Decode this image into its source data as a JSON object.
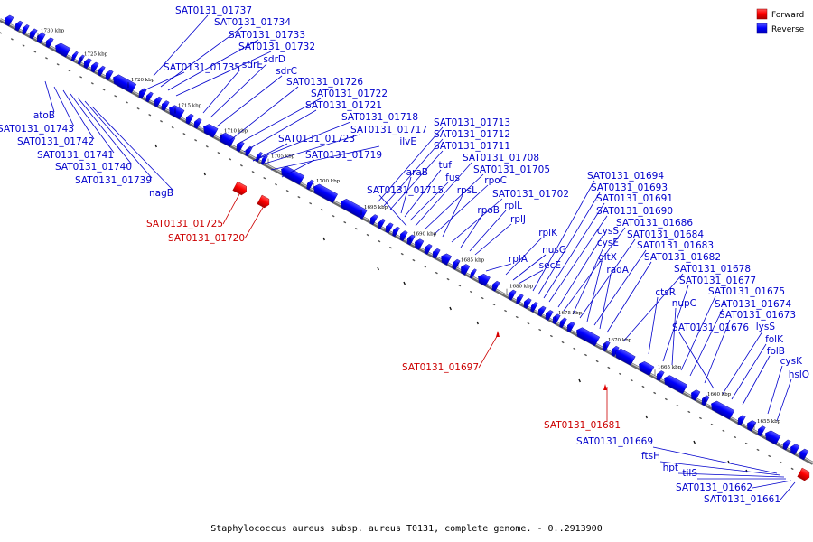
{
  "caption": "Staphylococcus aureus subsp. aureus T0131, complete genome. - 0..2913900",
  "legend": {
    "forward_label": "Forward",
    "reverse_label": "Reverse",
    "forward_color": "#ff0000",
    "reverse_color": "#0000ff"
  },
  "ticks": [
    "1730 kbp",
    "1725 kbp",
    "1720 kbp",
    "1715 kbp",
    "1710 kbp",
    "1705 kbp",
    "1700 kbp",
    "1695 kbp",
    "1690 kbp",
    "1685 kbp",
    "1680 kbp",
    "1675 kbp",
    "1670 kbp",
    "1665 kbp",
    "1660 kbp",
    "1655 kbp"
  ],
  "reverse_labels": [
    "SAT0131_01737",
    "SAT0131_01734",
    "SAT0131_01733",
    "SAT0131_01732",
    "SAT0131_01735",
    "sdrE",
    "sdrD",
    "sdrC",
    "SAT0131_01726",
    "SAT0131_01722",
    "SAT0131_01721",
    "SAT0131_01718",
    "SAT0131_01717",
    "SAT0131_01723",
    "ilvE",
    "SAT0131_01719",
    "SAT0131_01713",
    "SAT0131_01712",
    "SAT0131_01711",
    "araB",
    "tuf",
    "fus",
    "SAT0131_01708",
    "SAT0131_01705",
    "rpoC",
    "SAT0131_01715",
    "rpsL",
    "SAT0131_01702",
    "rpoB",
    "rplL",
    "rplJ",
    "rplA",
    "rplK",
    "nusG",
    "secE",
    "SAT0131_01694",
    "SAT0131_01693",
    "SAT0131_01691",
    "SAT0131_01690",
    "cysS",
    "SAT0131_01686",
    "cysE",
    "SAT0131_01684",
    "gltX",
    "SAT0131_01683",
    "radA",
    "SAT0131_01682",
    "SAT0131_01678",
    "ctsR",
    "SAT0131_01677",
    "nupC",
    "SAT0131_01675",
    "SAT0131_01674",
    "SAT0131_01676",
    "SAT0131_01673",
    "lysS",
    "folK",
    "folB",
    "cysK",
    "hslO"
  ],
  "left_labels": [
    "atoB",
    "SAT0131_01743",
    "SAT0131_01742",
    "SAT0131_01741",
    "SAT0131_01740",
    "SAT0131_01739",
    "nagB"
  ],
  "lower_labels": [
    "SAT0131_01669",
    "ftsH",
    "hpt",
    "tilS",
    "SAT0131_01662",
    "SAT0131_01661"
  ],
  "forward_labels": [
    "SAT0131_01725",
    "SAT0131_01720",
    "SAT0131_01697",
    "SAT0131_01681"
  ]
}
